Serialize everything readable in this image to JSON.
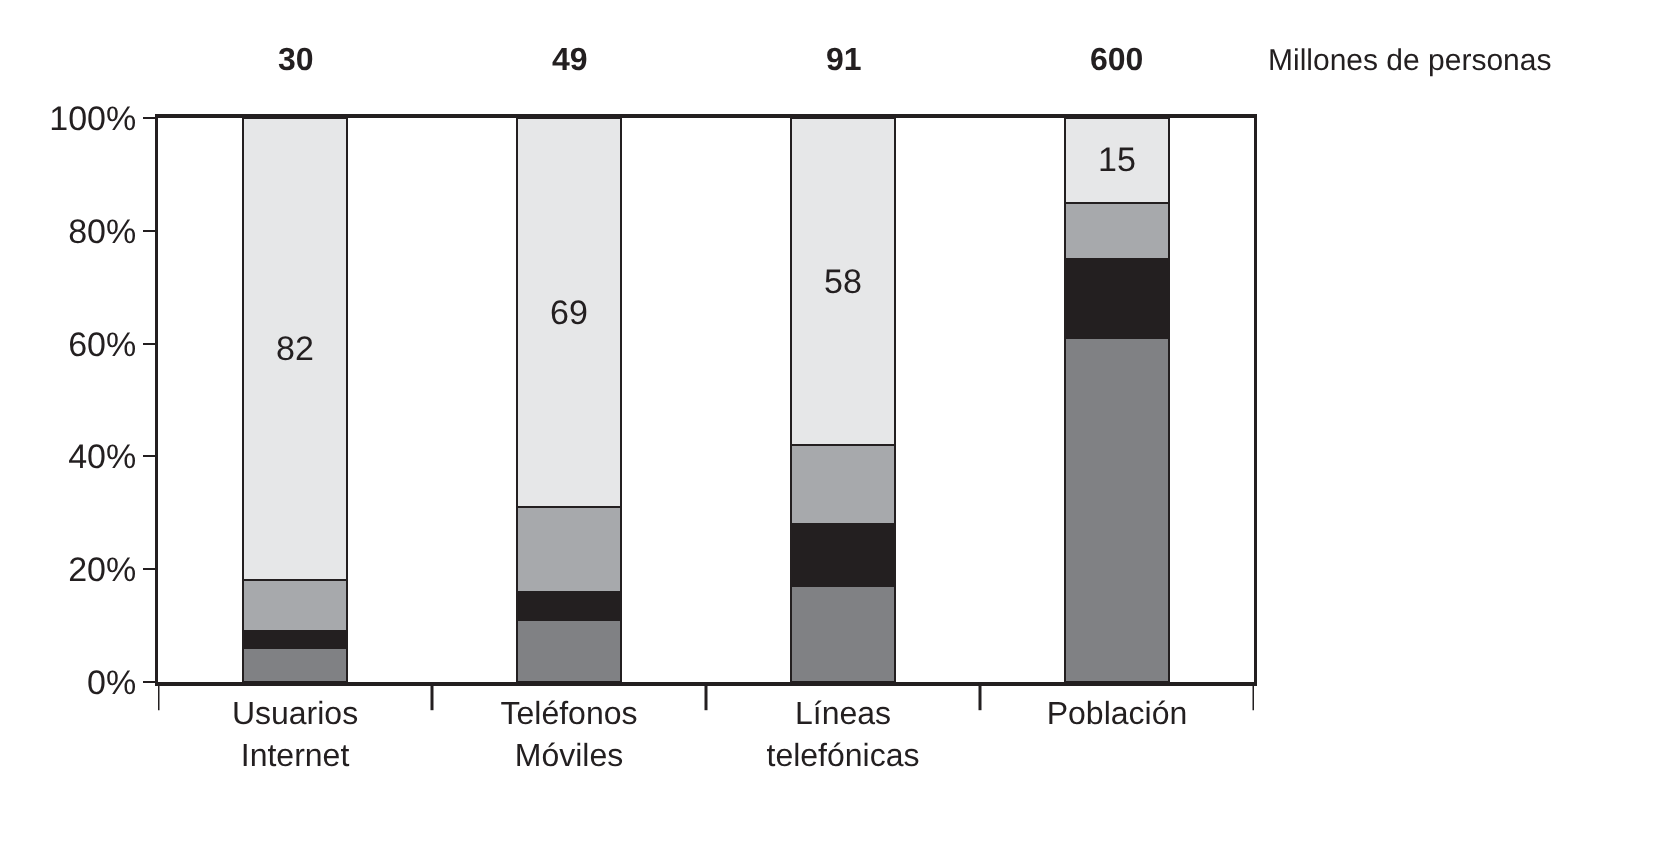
{
  "chart_data": {
    "type": "bar",
    "stacked": true,
    "categories": [
      "Usuarios Internet",
      "Teléfonos Móviles",
      "Líneas telefónicas",
      "Población"
    ],
    "series": [
      {
        "color": "#808184",
        "values": [
          6,
          11,
          17,
          61
        ]
      },
      {
        "color": "#231f20",
        "values": [
          3,
          5,
          11,
          14
        ]
      },
      {
        "color": "#a7a9ac",
        "values": [
          9,
          15,
          14,
          10
        ]
      },
      {
        "color": "#e6e7e8",
        "values": [
          82,
          69,
          58,
          15
        ],
        "value_labels": [
          "82",
          "69",
          "58",
          "15"
        ]
      }
    ],
    "annotations": [
      {
        "text": "30",
        "x": "Usuarios Internet",
        "y": 100
      },
      {
        "text": "49",
        "x": "Teléfonos Móviles",
        "y": 100
      },
      {
        "text": "91",
        "x": "Líneas telefónicas",
        "y": 100
      },
      {
        "text": "600",
        "x": "Población",
        "y": 100
      },
      "Millones de personas"
    ],
    "ylim": [
      0,
      100
    ],
    "yticks": [
      {
        "value": 0,
        "label": "0%"
      },
      {
        "value": 20,
        "label": "20%"
      },
      {
        "value": 40,
        "label": "40%"
      },
      {
        "value": 60,
        "label": "60%"
      },
      {
        "value": 80,
        "label": "80%"
      },
      {
        "value": 100,
        "label": "100%"
      }
    ]
  }
}
